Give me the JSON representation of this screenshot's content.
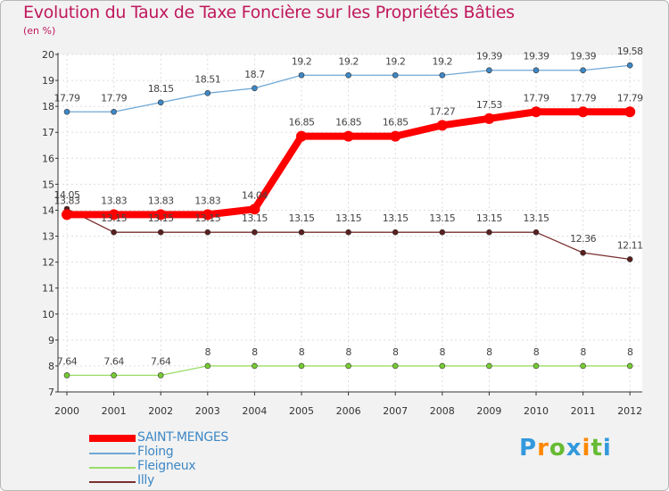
{
  "chart_data": {
    "type": "line",
    "title": "Evolution du Taux de Taxe Foncière sur les Propriétés Bâties",
    "ylabel": "(en %)",
    "xlabel": "",
    "categories": [
      "2000",
      "2001",
      "2002",
      "2003",
      "2004",
      "2005",
      "2006",
      "2007",
      "2008",
      "2009",
      "2010",
      "2011",
      "2012"
    ],
    "ylim": [
      7,
      20
    ],
    "yticks": [
      7,
      8,
      9,
      10,
      11,
      12,
      13,
      14,
      15,
      16,
      17,
      18,
      19,
      20
    ],
    "series": [
      {
        "name": "SAINT-MENGES",
        "color": "#ff0000",
        "marker": "#ff0000",
        "labels": [
          "13.83",
          "13.83",
          "13.83",
          "13.83",
          "14.04",
          "16.85",
          "16.85",
          "16.85",
          "17.27",
          "17.53",
          "17.79",
          "17.79",
          "17.79"
        ],
        "values": [
          13.83,
          13.83,
          13.83,
          13.83,
          14.04,
          16.85,
          16.85,
          16.85,
          17.27,
          17.53,
          17.79,
          17.79,
          17.79
        ]
      },
      {
        "name": "Floing",
        "color": "#6fa8d6",
        "marker": "#3e88c6",
        "labels": [
          "17.79",
          "17.79",
          "18.15",
          "18.51",
          "18.7",
          "19.2",
          "19.2",
          "19.2",
          "19.2",
          "19.39",
          "19.39",
          "19.39",
          "19.58"
        ],
        "values": [
          17.79,
          17.79,
          18.15,
          18.51,
          18.7,
          19.2,
          19.2,
          19.2,
          19.2,
          19.39,
          19.39,
          19.39,
          19.58
        ]
      },
      {
        "name": "Fleigneux",
        "color": "#99dd66",
        "marker": "#77cc33",
        "labels": [
          "7.64",
          "7.64",
          "7.64",
          "8",
          "8",
          "8",
          "8",
          "8",
          "8",
          "8",
          "8",
          "8",
          "8"
        ],
        "values": [
          7.64,
          7.64,
          7.64,
          8,
          8,
          8,
          8,
          8,
          8,
          8,
          8,
          8,
          8
        ]
      },
      {
        "name": "Illy",
        "color": "#7a2f2f",
        "marker": "#5a1f1f",
        "labels": [
          "14.05",
          "13.15",
          "13.15",
          "13.15",
          "13.15",
          "13.15",
          "13.15",
          "13.15",
          "13.15",
          "13.15",
          "13.15",
          "12.36",
          "12.11"
        ],
        "values": [
          14.05,
          13.15,
          13.15,
          13.15,
          13.15,
          13.15,
          13.15,
          13.15,
          13.15,
          13.15,
          13.15,
          12.36,
          12.11
        ]
      }
    ]
  },
  "logo": {
    "text": "Proxiti",
    "letters": [
      "P",
      "r",
      "o",
      "x",
      "i",
      "t",
      "i"
    ],
    "colors": [
      "#3399dd",
      "#ff8800",
      "#66bb33",
      "#3399dd",
      "#ff8800",
      "#66bb33",
      "#3399dd"
    ]
  }
}
